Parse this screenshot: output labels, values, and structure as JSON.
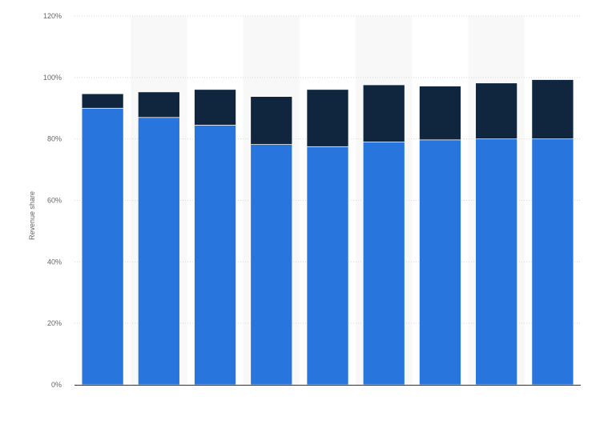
{
  "chart_data": {
    "type": "bar",
    "stacked": true,
    "categories": [
      "",
      "",
      "",
      "",
      "",
      "",
      "",
      "",
      ""
    ],
    "series": [
      {
        "values": [
          90,
          87,
          84.5,
          78.2,
          77.5,
          79,
          79.7,
          80,
          80
        ],
        "color": "#2876dd"
      },
      {
        "values": [
          4.7,
          8.3,
          11.6,
          15.6,
          18.6,
          18.6,
          17.5,
          18.2,
          19.3
        ],
        "color": "#0f263e"
      }
    ],
    "title": "",
    "xlabel": "",
    "ylabel": "Revenue share",
    "ylim": [
      0,
      120
    ],
    "yticks": [
      0,
      20,
      40,
      60,
      80,
      100,
      120
    ],
    "ytick_labels": [
      "0%",
      "20%",
      "40%",
      "60%",
      "80%",
      "100%",
      "120%"
    ],
    "grid": true,
    "legend": "none"
  }
}
